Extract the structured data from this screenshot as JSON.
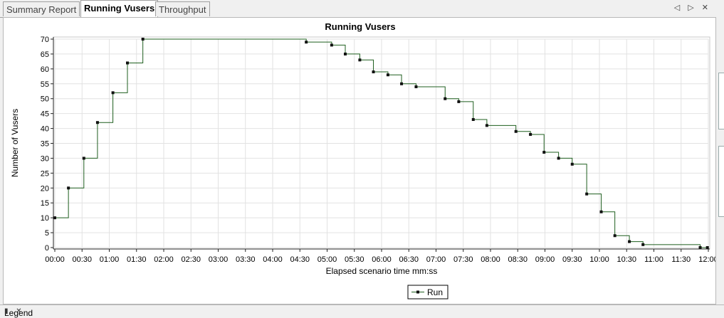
{
  "tabs": [
    {
      "label": "Summary Report",
      "active": false
    },
    {
      "label": "Running Vusers",
      "active": true
    },
    {
      "label": "Throughput",
      "active": false
    }
  ],
  "window_controls": "◁ ▷ ✕",
  "legend_panel_title": "Legend",
  "chart_data": {
    "type": "line",
    "step": true,
    "title": "Running Vusers",
    "xlabel": "Elapsed scenario time mm:ss",
    "ylabel": "Number of Vusers",
    "xlim_seconds": [
      0,
      720
    ],
    "ylim": [
      0,
      70
    ],
    "xticks": [
      "00:00",
      "00:30",
      "01:00",
      "01:30",
      "02:00",
      "02:30",
      "03:00",
      "03:30",
      "04:00",
      "04:30",
      "05:00",
      "05:30",
      "06:00",
      "06:30",
      "07:00",
      "07:30",
      "08:00",
      "08:30",
      "09:00",
      "09:30",
      "10:00",
      "10:30",
      "11:00",
      "11:30",
      "12:00"
    ],
    "yticks": [
      0,
      5,
      10,
      15,
      20,
      25,
      30,
      35,
      40,
      45,
      50,
      55,
      60,
      65,
      70
    ],
    "grid": true,
    "legend_position": "bottom-center",
    "line_color": "#1f5f1f",
    "series": [
      {
        "name": "Run",
        "points": [
          [
            "00:00",
            10
          ],
          [
            "00:15",
            20
          ],
          [
            "00:32",
            30
          ],
          [
            "00:47",
            42
          ],
          [
            "01:04",
            52
          ],
          [
            "01:20",
            62
          ],
          [
            "01:37",
            70
          ],
          [
            "04:37",
            69
          ],
          [
            "05:05",
            68
          ],
          [
            "05:20",
            65
          ],
          [
            "05:36",
            63
          ],
          [
            "05:51",
            59
          ],
          [
            "06:07",
            58
          ],
          [
            "06:22",
            55
          ],
          [
            "06:38",
            54
          ],
          [
            "07:10",
            50
          ],
          [
            "07:25",
            49
          ],
          [
            "07:41",
            43
          ],
          [
            "07:56",
            41
          ],
          [
            "08:28",
            39
          ],
          [
            "08:44",
            38
          ],
          [
            "08:59",
            32
          ],
          [
            "09:15",
            30
          ],
          [
            "09:30",
            28
          ],
          [
            "09:46",
            18
          ],
          [
            "10:02",
            12
          ],
          [
            "10:17",
            4
          ],
          [
            "10:33",
            2
          ],
          [
            "10:48",
            1
          ],
          [
            "11:51",
            0
          ],
          [
            "11:59",
            0
          ]
        ]
      }
    ]
  }
}
